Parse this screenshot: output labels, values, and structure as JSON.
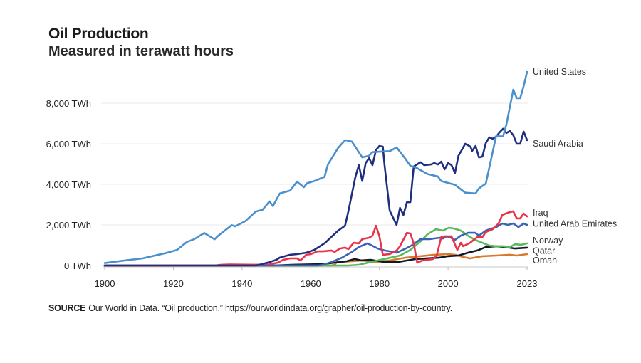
{
  "header": {
    "title": "Oil Production",
    "subtitle": "Measured in terawatt hours"
  },
  "source": {
    "label": "SOURCE",
    "text": "Our World in Data. “Oil production.” https://ourworldindata.org/grapher/oil-production-by-country."
  },
  "chart_data": {
    "type": "line",
    "title": "Oil Production",
    "subtitle": "Measured in terawatt hours",
    "xlabel": "",
    "ylabel": "",
    "xlim": [
      1900,
      2023
    ],
    "ylim": [
      0,
      9600
    ],
    "x_ticks": [
      1900,
      1920,
      1940,
      1960,
      1980,
      2000,
      2023
    ],
    "y_ticks": [
      0,
      2000,
      4000,
      6000,
      8000
    ],
    "y_tick_labels": [
      "0 TWh",
      "2,000 TWh",
      "4,000 TWh",
      "6,000 TWh",
      "8,000 TWh"
    ],
    "grid": "horizontal",
    "legend": "direct labels at right end of lines",
    "series": [
      {
        "name": "United States",
        "color": "#4a90cc",
        "points": [
          [
            1900,
            120
          ],
          [
            1905,
            230
          ],
          [
            1911,
            350
          ],
          [
            1918,
            620
          ],
          [
            1921,
            760
          ],
          [
            1924,
            1170
          ],
          [
            1926,
            1290
          ],
          [
            1929,
            1600
          ],
          [
            1932,
            1290
          ],
          [
            1933,
            1460
          ],
          [
            1937,
            1990
          ],
          [
            1938,
            1930
          ],
          [
            1941,
            2190
          ],
          [
            1944,
            2660
          ],
          [
            1946,
            2750
          ],
          [
            1948,
            3160
          ],
          [
            1949,
            2930
          ],
          [
            1951,
            3550
          ],
          [
            1954,
            3690
          ],
          [
            1956,
            4130
          ],
          [
            1958,
            3860
          ],
          [
            1959,
            4060
          ],
          [
            1961,
            4160
          ],
          [
            1964,
            4370
          ],
          [
            1965,
            4980
          ],
          [
            1968,
            5800
          ],
          [
            1970,
            6180
          ],
          [
            1972,
            6110
          ],
          [
            1975,
            5330
          ],
          [
            1977,
            5410
          ],
          [
            1978,
            5590
          ],
          [
            1981,
            5620
          ],
          [
            1983,
            5640
          ],
          [
            1985,
            5820
          ],
          [
            1987,
            5390
          ],
          [
            1989,
            4920
          ],
          [
            1991,
            4800
          ],
          [
            1994,
            4510
          ],
          [
            1997,
            4390
          ],
          [
            1998,
            4160
          ],
          [
            2002,
            3980
          ],
          [
            2005,
            3590
          ],
          [
            2008,
            3550
          ],
          [
            2009,
            3800
          ],
          [
            2011,
            4040
          ],
          [
            2014,
            6380
          ],
          [
            2016,
            6360
          ],
          [
            2017,
            6970
          ],
          [
            2019,
            8670
          ],
          [
            2020,
            8250
          ],
          [
            2021,
            8250
          ],
          [
            2022,
            8840
          ],
          [
            2023,
            9540
          ]
        ]
      },
      {
        "name": "Saudi Arabia",
        "color": "#1f2f80",
        "points": [
          [
            1900,
            0
          ],
          [
            1944,
            0
          ],
          [
            1945,
            35
          ],
          [
            1948,
            170
          ],
          [
            1950,
            280
          ],
          [
            1951,
            390
          ],
          [
            1954,
            530
          ],
          [
            1956,
            560
          ],
          [
            1958.7,
            630
          ],
          [
            1961,
            770
          ],
          [
            1964,
            1090
          ],
          [
            1968,
            1720
          ],
          [
            1970,
            1960
          ],
          [
            1971,
            2700
          ],
          [
            1973,
            4350
          ],
          [
            1974,
            4950
          ],
          [
            1975,
            4170
          ],
          [
            1976,
            5050
          ],
          [
            1977,
            5290
          ],
          [
            1978,
            4950
          ],
          [
            1979,
            5690
          ],
          [
            1980,
            5890
          ],
          [
            1981,
            5860
          ],
          [
            1981.5,
            4950
          ],
          [
            1983,
            2700
          ],
          [
            1985,
            2000
          ],
          [
            1986,
            2840
          ],
          [
            1987,
            2490
          ],
          [
            1988,
            3120
          ],
          [
            1989,
            3120
          ],
          [
            1990,
            4880
          ],
          [
            1992,
            5090
          ],
          [
            1993,
            4950
          ],
          [
            1995,
            4980
          ],
          [
            1996,
            5050
          ],
          [
            1997,
            4980
          ],
          [
            1998,
            5120
          ],
          [
            1999,
            4740
          ],
          [
            2000,
            5050
          ],
          [
            2001,
            4950
          ],
          [
            2002,
            4560
          ],
          [
            2003,
            5400
          ],
          [
            2005,
            6000
          ],
          [
            2006.5,
            5860
          ],
          [
            2007,
            5650
          ],
          [
            2008,
            5890
          ],
          [
            2009,
            5330
          ],
          [
            2010,
            5370
          ],
          [
            2011,
            6040
          ],
          [
            2012,
            6320
          ],
          [
            2013,
            6250
          ],
          [
            2014,
            6350
          ],
          [
            2015,
            6560
          ],
          [
            2016,
            6740
          ],
          [
            2017,
            6530
          ],
          [
            2018,
            6630
          ],
          [
            2019,
            6420
          ],
          [
            2020,
            6000
          ],
          [
            2021,
            6000
          ],
          [
            2022,
            6600
          ],
          [
            2023,
            6180
          ]
        ]
      },
      {
        "name": "Iraq",
        "color": "#e8334a",
        "points": [
          [
            1900,
            0
          ],
          [
            1932,
            0
          ],
          [
            1934,
            40
          ],
          [
            1936.5,
            50
          ],
          [
            1943.5,
            40
          ],
          [
            1947.7,
            50
          ],
          [
            1950.4,
            140
          ],
          [
            1952,
            280
          ],
          [
            1954,
            350
          ],
          [
            1956,
            350
          ],
          [
            1957,
            250
          ],
          [
            1958.7,
            530
          ],
          [
            1960,
            560
          ],
          [
            1962,
            700
          ],
          [
            1963.5,
            700
          ],
          [
            1966,
            740
          ],
          [
            1967,
            670
          ],
          [
            1968.5,
            840
          ],
          [
            1970,
            880
          ],
          [
            1971,
            810
          ],
          [
            1972.5,
            1120
          ],
          [
            1974,
            1090
          ],
          [
            1975,
            1300
          ],
          [
            1977,
            1370
          ],
          [
            1978,
            1470
          ],
          [
            1979,
            1960
          ],
          [
            1980,
            1440
          ],
          [
            1981,
            530
          ],
          [
            1983,
            560
          ],
          [
            1985,
            740
          ],
          [
            1986,
            950
          ],
          [
            1988,
            1610
          ],
          [
            1989,
            1580
          ],
          [
            1990,
            1090
          ],
          [
            1991,
            140
          ],
          [
            1992.5,
            250
          ],
          [
            1995.6,
            320
          ],
          [
            1996.7,
            490
          ],
          [
            1998,
            1400
          ],
          [
            1999,
            1440
          ],
          [
            2001,
            1440
          ],
          [
            2002.7,
            770
          ],
          [
            2003.7,
            1120
          ],
          [
            2004.4,
            950
          ],
          [
            2006.4,
            1120
          ],
          [
            2008.5,
            1400
          ],
          [
            2010,
            1400
          ],
          [
            2011,
            1650
          ],
          [
            2013,
            1790
          ],
          [
            2014.7,
            2070
          ],
          [
            2015.8,
            2490
          ],
          [
            2017.4,
            2600
          ],
          [
            2019,
            2670
          ],
          [
            2020,
            2320
          ],
          [
            2021,
            2320
          ],
          [
            2022,
            2560
          ],
          [
            2023,
            2420
          ]
        ]
      },
      {
        "name": "United Arab Emirates",
        "color": "#3a62b5",
        "points": [
          [
            1900,
            0
          ],
          [
            1962,
            0
          ],
          [
            1963.5,
            30
          ],
          [
            1966,
            170
          ],
          [
            1969,
            380
          ],
          [
            1972,
            670
          ],
          [
            1974,
            910
          ],
          [
            1976.5,
            1090
          ],
          [
            1977.4,
            1020
          ],
          [
            1979.5,
            840
          ],
          [
            1981.5,
            740
          ],
          [
            1984,
            670
          ],
          [
            1985,
            630
          ],
          [
            1987.7,
            840
          ],
          [
            1990,
            1050
          ],
          [
            1992,
            1300
          ],
          [
            1994.6,
            1300
          ],
          [
            1997.5,
            1370
          ],
          [
            1998.5,
            1330
          ],
          [
            1999.6,
            1440
          ],
          [
            2000.8,
            1370
          ],
          [
            2002,
            1260
          ],
          [
            2003.7,
            1470
          ],
          [
            2005.8,
            1610
          ],
          [
            2007.9,
            1610
          ],
          [
            2009,
            1470
          ],
          [
            2011,
            1720
          ],
          [
            2012.7,
            1820
          ],
          [
            2014,
            1890
          ],
          [
            2015.8,
            2070
          ],
          [
            2017.4,
            2000
          ],
          [
            2019,
            2070
          ],
          [
            2020.5,
            1890
          ],
          [
            2022,
            2070
          ],
          [
            2023,
            2000
          ]
        ]
      },
      {
        "name": "Norway",
        "color": "#5cb85c",
        "points": [
          [
            1900,
            0
          ],
          [
            1971,
            0
          ],
          [
            1974,
            35
          ],
          [
            1977.4,
            170
          ],
          [
            1983,
            380
          ],
          [
            1986,
            490
          ],
          [
            1989,
            770
          ],
          [
            1992,
            1190
          ],
          [
            1994,
            1540
          ],
          [
            1996.5,
            1790
          ],
          [
            1998.5,
            1720
          ],
          [
            2000.2,
            1860
          ],
          [
            2001.8,
            1820
          ],
          [
            2003.7,
            1720
          ],
          [
            2005.8,
            1470
          ],
          [
            2007.9,
            1260
          ],
          [
            2010,
            1120
          ],
          [
            2012,
            980
          ],
          [
            2014,
            950
          ],
          [
            2016,
            950
          ],
          [
            2018,
            910
          ],
          [
            2019.5,
            1050
          ],
          [
            2021.4,
            1020
          ],
          [
            2023,
            1090
          ]
        ]
      },
      {
        "name": "Qatar",
        "color": "#111827",
        "points": [
          [
            1900,
            0
          ],
          [
            1949,
            0
          ],
          [
            1955,
            40
          ],
          [
            1963.5,
            70
          ],
          [
            1970.5,
            210
          ],
          [
            1972.8,
            320
          ],
          [
            1974.7,
            250
          ],
          [
            1977.4,
            280
          ],
          [
            1981,
            180
          ],
          [
            1985.7,
            180
          ],
          [
            1990.5,
            320
          ],
          [
            1997.5,
            390
          ],
          [
            2000,
            460
          ],
          [
            2003,
            490
          ],
          [
            2005.8,
            630
          ],
          [
            2008.5,
            740
          ],
          [
            2011,
            910
          ],
          [
            2014,
            950
          ],
          [
            2016.8,
            910
          ],
          [
            2019.5,
            840
          ],
          [
            2023,
            880
          ]
        ]
      },
      {
        "name": "Oman",
        "color": "#d97a2b",
        "points": [
          [
            1900,
            0
          ],
          [
            1966,
            0
          ],
          [
            1967,
            35
          ],
          [
            1967.6,
            170
          ],
          [
            1972,
            210
          ],
          [
            1974.7,
            250
          ],
          [
            1978.8,
            180
          ],
          [
            1983,
            250
          ],
          [
            1987.7,
            390
          ],
          [
            1992,
            460
          ],
          [
            1996,
            530
          ],
          [
            2000,
            560
          ],
          [
            2002,
            530
          ],
          [
            2004.4,
            420
          ],
          [
            2006.4,
            350
          ],
          [
            2010,
            460
          ],
          [
            2014,
            490
          ],
          [
            2018,
            530
          ],
          [
            2020,
            490
          ],
          [
            2023,
            560
          ]
        ]
      }
    ],
    "end_labels": [
      {
        "name": "United States",
        "value_pos": 9540
      },
      {
        "name": "Saudi Arabia",
        "value_pos": 6000
      },
      {
        "name": "Iraq",
        "value_pos": 2600
      },
      {
        "name": "United Arab Emirates",
        "value_pos": 2060
      },
      {
        "name": "Norway",
        "value_pos": 1220
      },
      {
        "name": "Qatar",
        "value_pos": 720
      },
      {
        "name": "Oman",
        "value_pos": 240
      }
    ]
  }
}
